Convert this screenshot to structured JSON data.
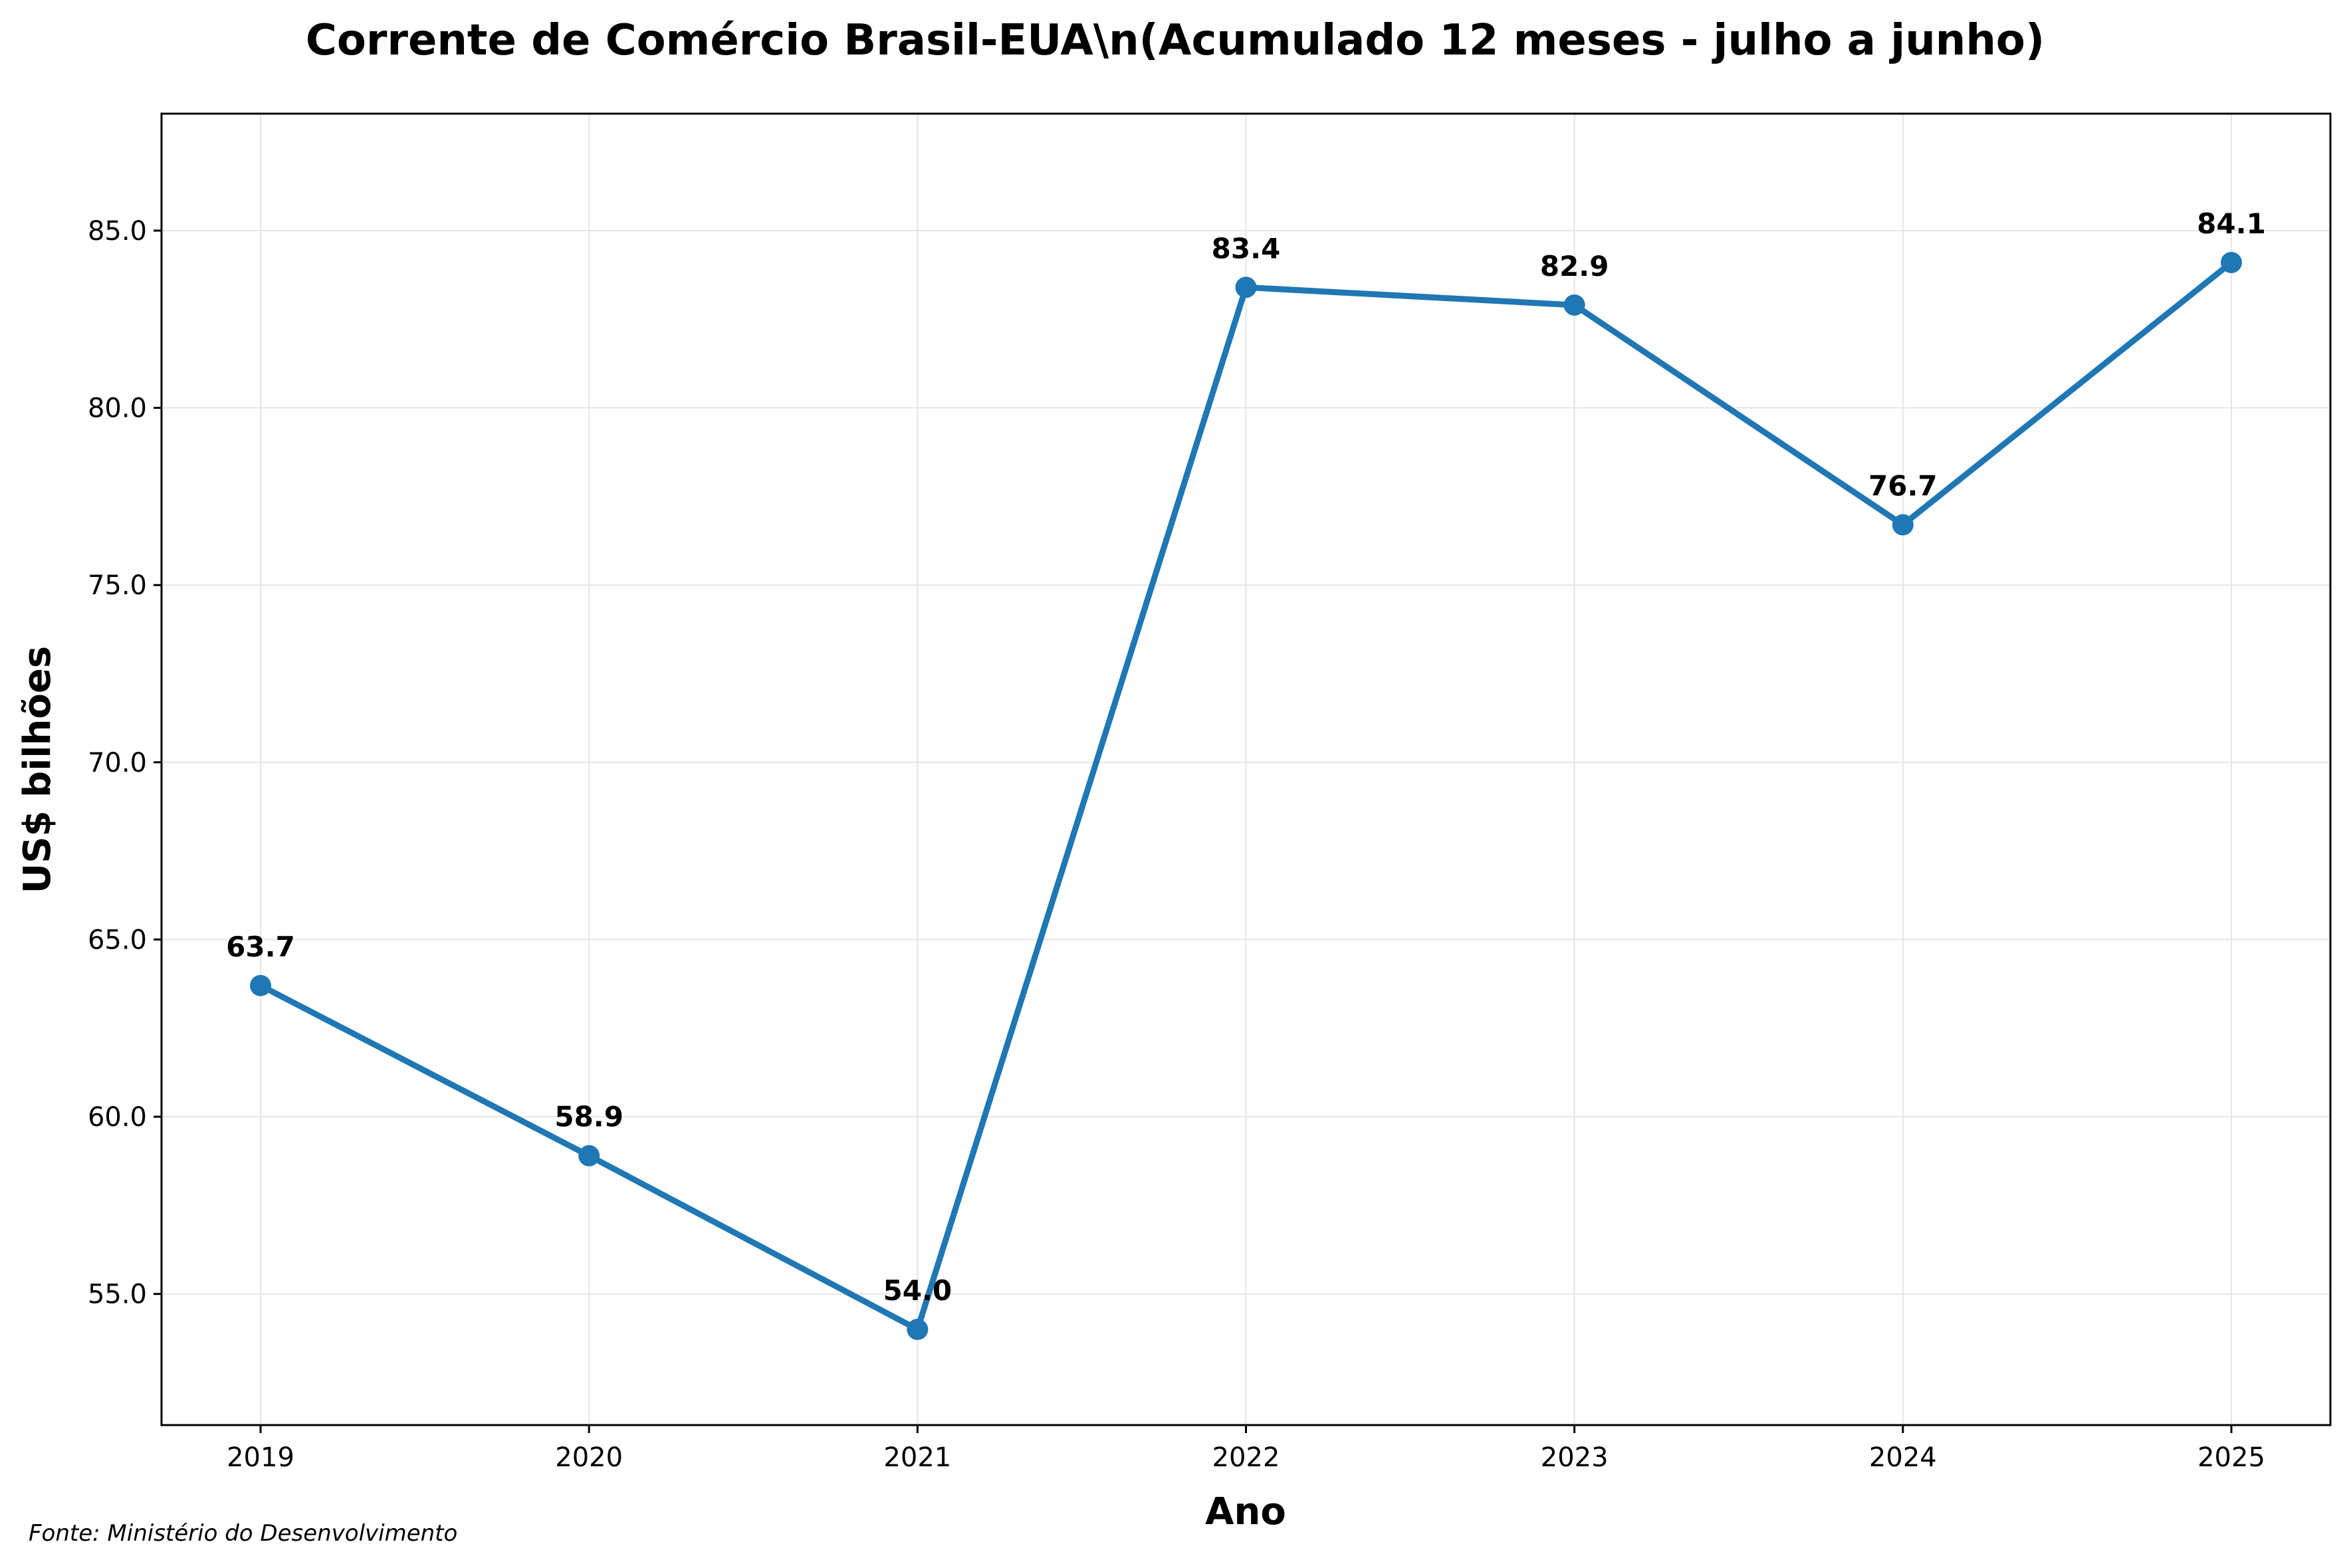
{
  "chart_data": {
    "type": "line",
    "title": "Corrente de Comércio Brasil-EUA\\n(Acumulado 12 meses - julho a junho)",
    "xlabel": "Ano",
    "ylabel": "US$ bilhões",
    "source": "Fonte: Ministério do Desenvolvimento",
    "categories": [
      "2019",
      "2020",
      "2021",
      "2022",
      "2023",
      "2024",
      "2025"
    ],
    "series": [
      {
        "values": [
          63.7,
          58.9,
          54.0,
          83.4,
          82.9,
          76.7,
          84.1
        ],
        "labels": [
          "63.7",
          "58.9",
          "54.0",
          "83.4",
          "82.9",
          "76.7",
          "84.1"
        ]
      }
    ],
    "yticks": [
      "55.0",
      "60.0",
      "65.0",
      "70.0",
      "75.0",
      "80.0",
      "85.0"
    ],
    "ytick_values": [
      55,
      60,
      65,
      70,
      75,
      80,
      85
    ],
    "ylim": [
      51.3,
      88.3
    ],
    "grid": true,
    "line_color": "#1f77b4",
    "grid_color": "#e6e6e6"
  }
}
